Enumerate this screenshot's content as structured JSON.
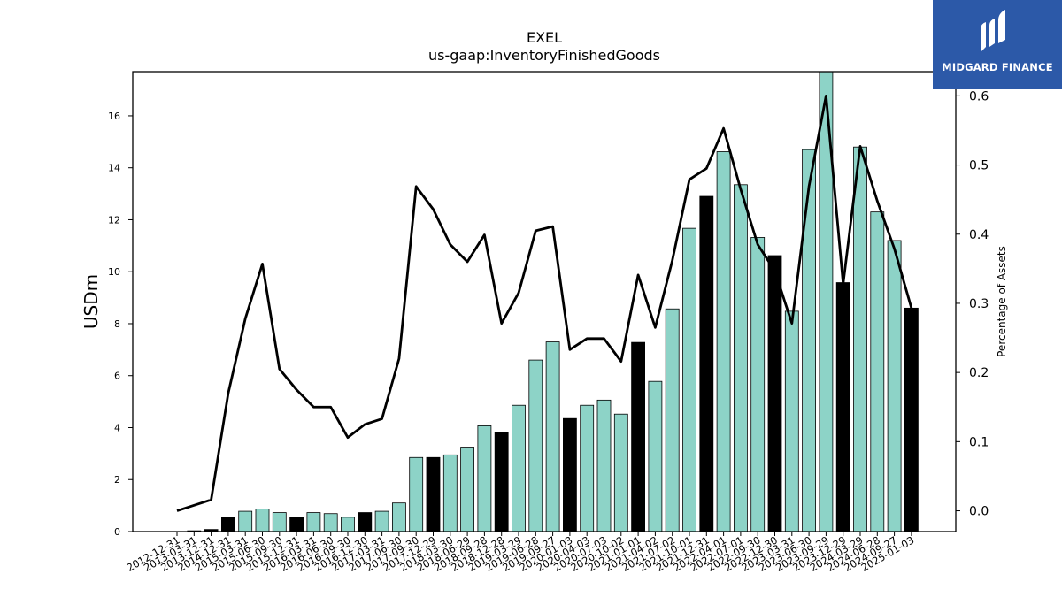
{
  "chart_data": {
    "type": "bar+line",
    "title": "EXEL",
    "subtitle": "us-gaap:InventoryFinishedGoods",
    "ylabel": "USDm",
    "y2label": "Percentage of Assets",
    "ylim": [
      0,
      17.7
    ],
    "y2lim": [
      -0.03,
      0.635
    ],
    "yticks": [
      0,
      2,
      4,
      6,
      8,
      10,
      12,
      14,
      16
    ],
    "y2ticks": [
      "0.0",
      "0.1",
      "0.2",
      "0.3",
      "0.4",
      "0.5",
      "0.6"
    ],
    "categories": [
      "2012-12-31",
      "2013-03-31",
      "2013-12-31",
      "2014-12-31",
      "2015-03-31",
      "2015-06-30",
      "2015-09-30",
      "2015-12-31",
      "2016-03-31",
      "2016-06-30",
      "2016-09-30",
      "2016-12-30",
      "2017-03-31",
      "2017-06-30",
      "2017-09-30",
      "2017-12-29",
      "2018-03-30",
      "2018-06-29",
      "2018-09-28",
      "2018-12-28",
      "2019-03-29",
      "2019-06-28",
      "2019-09-27",
      "2020-01-03",
      "2020-04-03",
      "2020-07-03",
      "2020-10-02",
      "2021-01-01",
      "2021-04-02",
      "2021-07-02",
      "2021-10-01",
      "2021-12-31",
      "2022-04-01",
      "2022-07-01",
      "2022-09-30",
      "2022-12-30",
      "2023-03-31",
      "2023-06-30",
      "2023-09-29",
      "2023-12-29",
      "2024-03-29",
      "2024-06-28",
      "2024-09-27",
      "2025-01-03"
    ],
    "values": [
      0,
      0.03,
      0.08,
      0.55,
      0.78,
      0.87,
      0.73,
      0.55,
      0.73,
      0.69,
      0.55,
      0.73,
      0.78,
      1.1,
      2.85,
      2.85,
      2.95,
      3.25,
      4.07,
      3.83,
      4.86,
      6.6,
      7.3,
      4.35,
      4.86,
      5.06,
      4.52,
      7.28,
      5.78,
      8.57,
      11.67,
      12.9,
      14.62,
      13.35,
      11.32,
      10.62,
      8.48,
      14.7,
      17.7,
      9.58,
      14.8,
      12.3,
      11.2,
      8.6
    ],
    "annual": [
      false,
      false,
      true,
      true,
      false,
      false,
      false,
      true,
      false,
      false,
      false,
      true,
      false,
      false,
      false,
      true,
      false,
      false,
      false,
      true,
      false,
      false,
      false,
      true,
      false,
      false,
      false,
      true,
      false,
      false,
      false,
      true,
      false,
      false,
      false,
      true,
      false,
      false,
      false,
      true,
      false,
      false,
      false,
      true
    ],
    "pct_assets": [
      0.0,
      0.008,
      0.016,
      0.17,
      0.278,
      0.357,
      0.205,
      0.175,
      0.15,
      0.15,
      0.106,
      0.125,
      0.133,
      0.22,
      0.469,
      0.436,
      0.385,
      0.36,
      0.399,
      0.271,
      0.315,
      0.405,
      0.411,
      0.233,
      0.249,
      0.249,
      0.216,
      0.341,
      0.265,
      0.362,
      0.479,
      0.495,
      0.553,
      0.465,
      0.385,
      0.347,
      0.271,
      0.469,
      0.6,
      0.328,
      0.527,
      0.448,
      0.379,
      0.293
    ],
    "colors": {
      "quarter_bar": "#8dd3c7",
      "annual_bar": "#000000",
      "line": "#000000"
    },
    "grid": false
  },
  "logo": {
    "text": "MIDGARD FINANCE"
  }
}
